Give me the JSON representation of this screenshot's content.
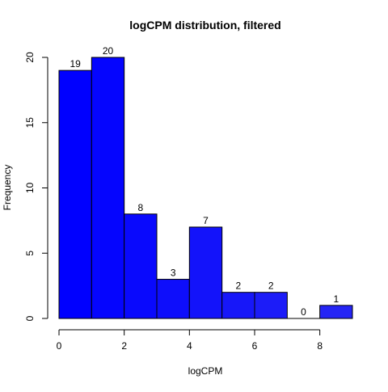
{
  "chart_data": {
    "type": "bar",
    "subtype": "histogram",
    "title": "logCPM distribution, filtered",
    "xlabel": "logCPM",
    "ylabel": "Frequency",
    "bins": [
      {
        "start": 0,
        "end": 1,
        "count": 19
      },
      {
        "start": 1,
        "end": 2,
        "count": 20
      },
      {
        "start": 2,
        "end": 3,
        "count": 8
      },
      {
        "start": 3,
        "end": 4,
        "count": 3
      },
      {
        "start": 4,
        "end": 5,
        "count": 7
      },
      {
        "start": 5,
        "end": 6,
        "count": 2
      },
      {
        "start": 6,
        "end": 7,
        "count": 2
      },
      {
        "start": 7,
        "end": 8,
        "count": 0
      },
      {
        "start": 8,
        "end": 9,
        "count": 1
      }
    ],
    "data_labels": [
      "19",
      "20",
      "8",
      "3",
      "7",
      "2",
      "2",
      "0",
      "1"
    ],
    "x_ticks": [
      0,
      2,
      4,
      6,
      8
    ],
    "x_tick_labels": [
      "0",
      "2",
      "4",
      "6",
      "8"
    ],
    "y_ticks": [
      0,
      5,
      10,
      15,
      20
    ],
    "y_tick_labels": [
      "0",
      "5",
      "10",
      "15",
      "20"
    ],
    "xlim": [
      0,
      9
    ],
    "ylim": [
      0,
      20
    ],
    "grid": false,
    "legend": "none",
    "bar_color_gradient": [
      "#0000ff",
      "#2525f5"
    ]
  }
}
